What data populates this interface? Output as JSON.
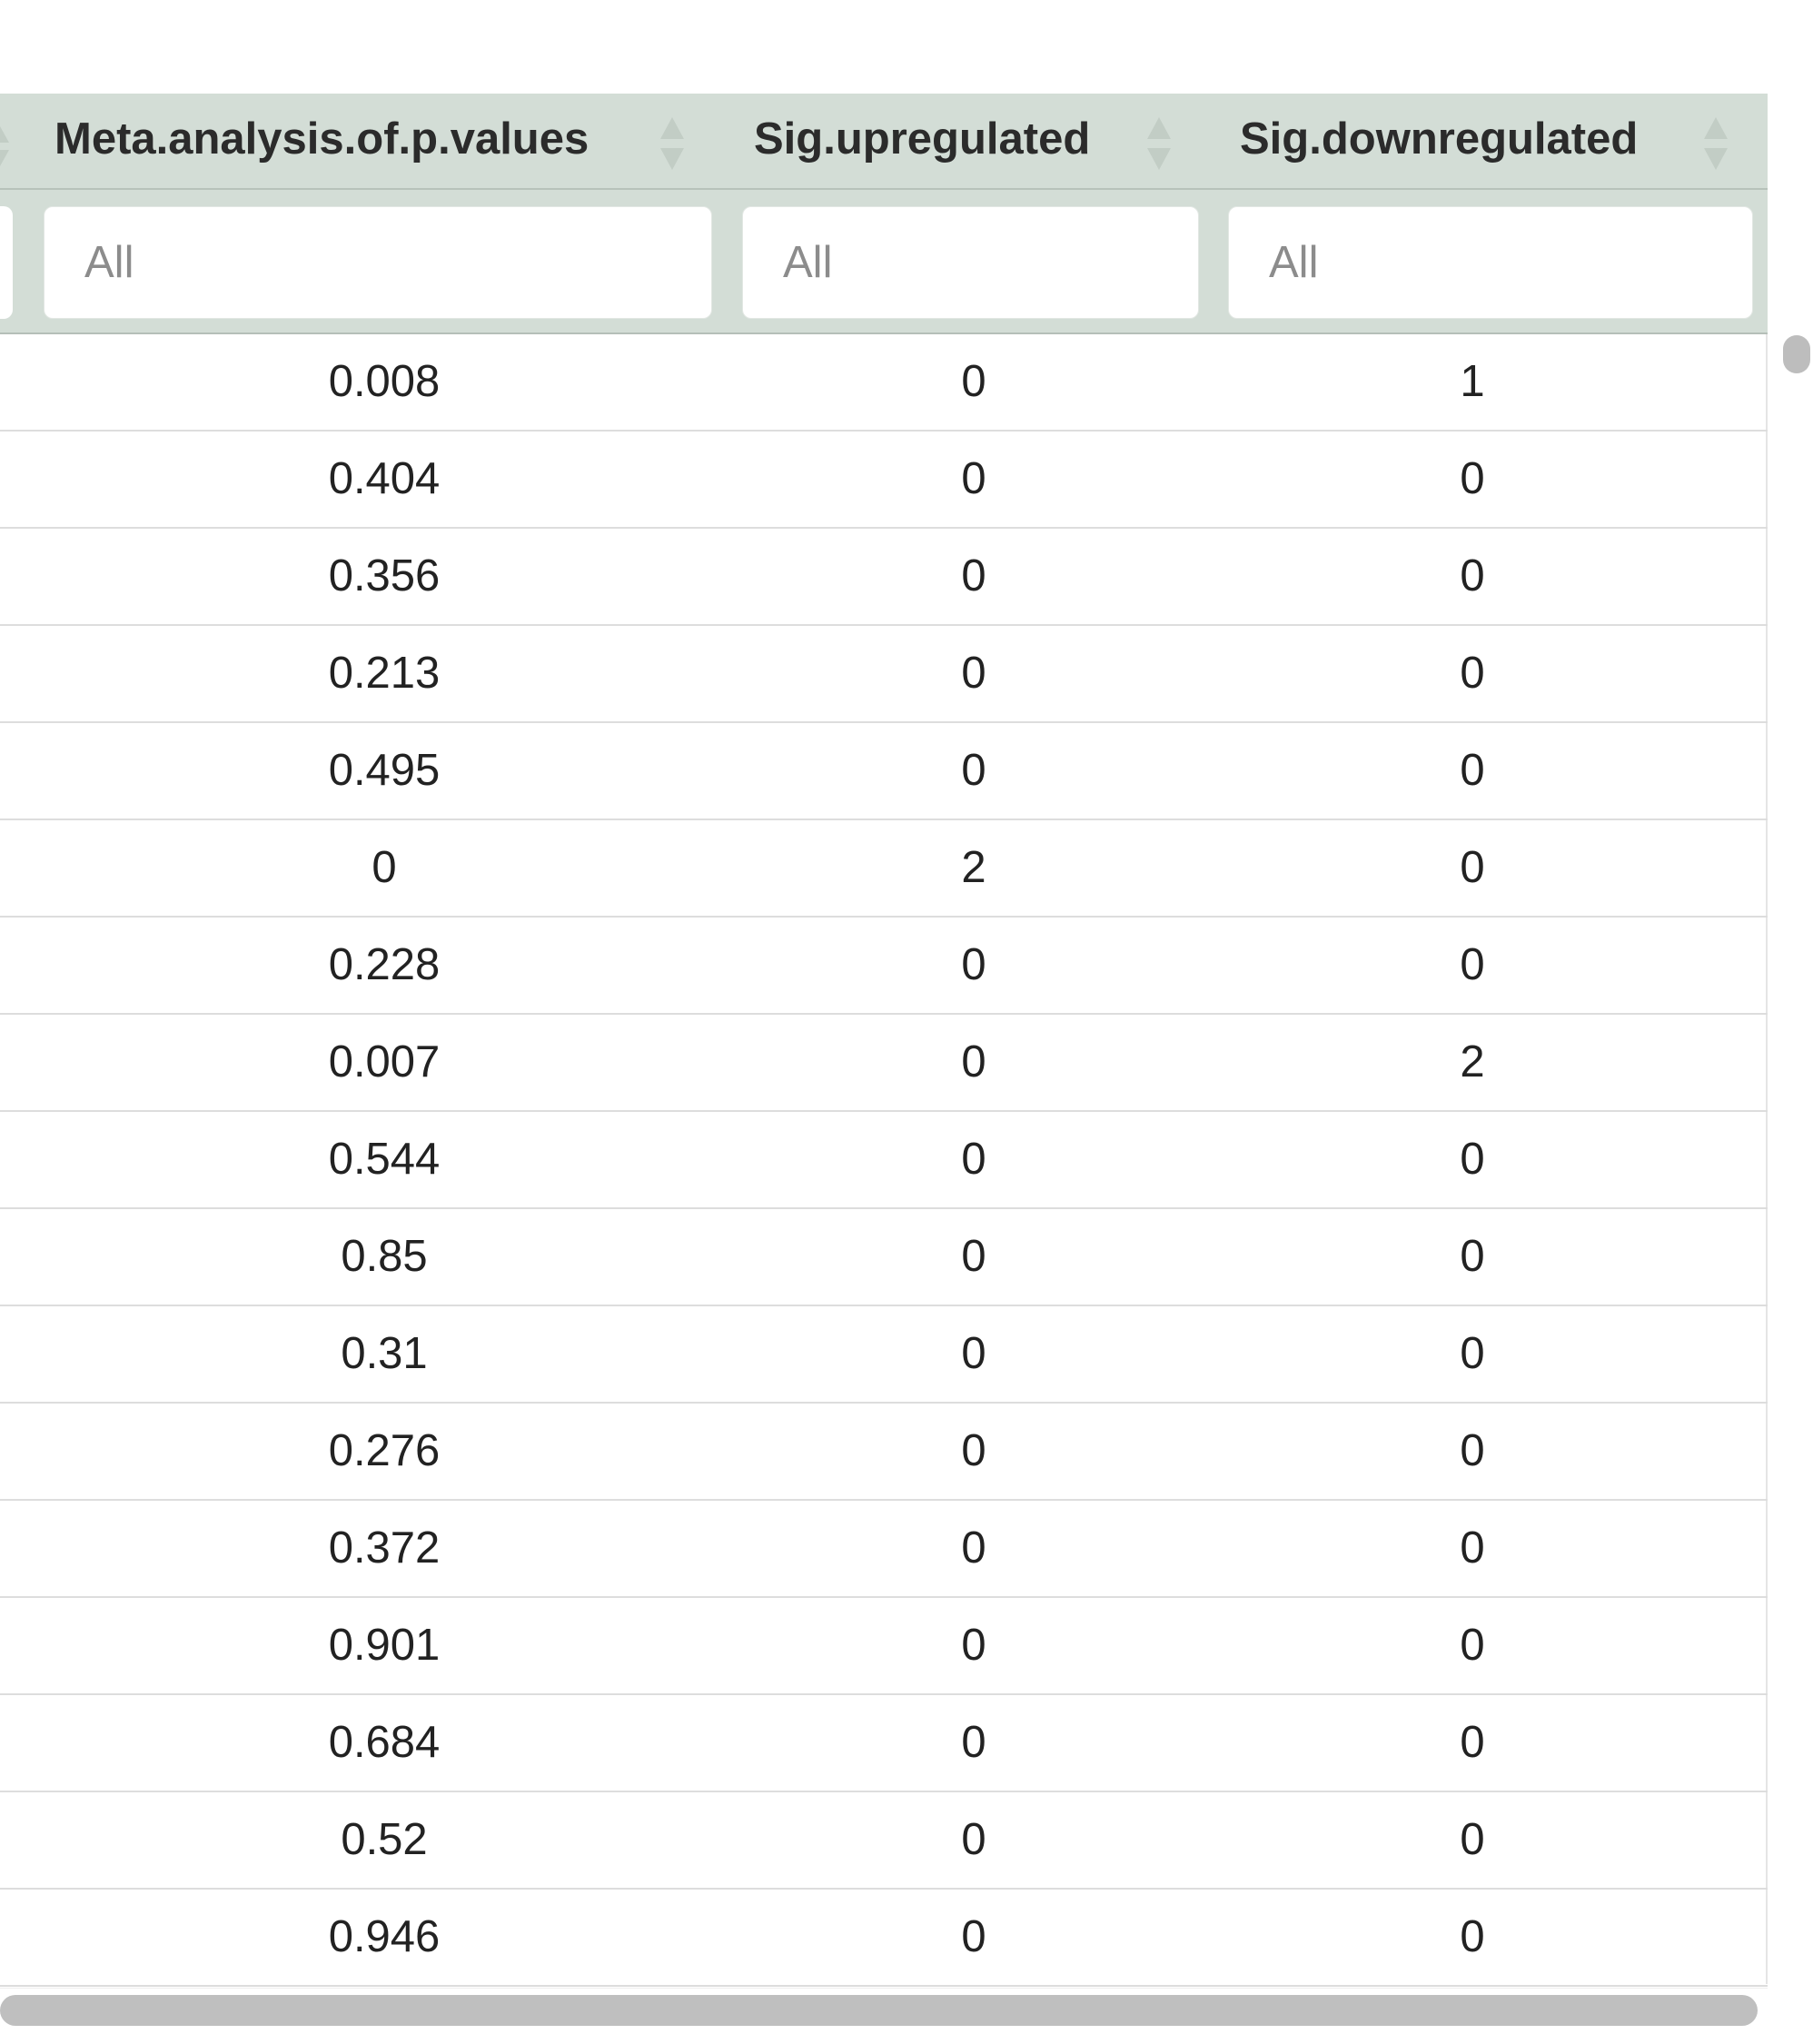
{
  "table": {
    "columns": [
      {
        "label": "Meta.analysis.of.p.values",
        "filter_placeholder": "All"
      },
      {
        "label": "Sig.upregulated",
        "filter_placeholder": "All"
      },
      {
        "label": "Sig.downregulated",
        "filter_placeholder": "All"
      }
    ],
    "rows": [
      {
        "meta": "0.008",
        "up": "0",
        "down": "1"
      },
      {
        "meta": "0.404",
        "up": "0",
        "down": "0"
      },
      {
        "meta": "0.356",
        "up": "0",
        "down": "0"
      },
      {
        "meta": "0.213",
        "up": "0",
        "down": "0"
      },
      {
        "meta": "0.495",
        "up": "0",
        "down": "0"
      },
      {
        "meta": "0",
        "up": "2",
        "down": "0"
      },
      {
        "meta": "0.228",
        "up": "0",
        "down": "0"
      },
      {
        "meta": "0.007",
        "up": "0",
        "down": "2"
      },
      {
        "meta": "0.544",
        "up": "0",
        "down": "0"
      },
      {
        "meta": "0.85",
        "up": "0",
        "down": "0"
      },
      {
        "meta": "0.31",
        "up": "0",
        "down": "0"
      },
      {
        "meta": "0.276",
        "up": "0",
        "down": "0"
      },
      {
        "meta": "0.372",
        "up": "0",
        "down": "0"
      },
      {
        "meta": "0.901",
        "up": "0",
        "down": "0"
      },
      {
        "meta": "0.684",
        "up": "0",
        "down": "0"
      },
      {
        "meta": "0.52",
        "up": "0",
        "down": "0"
      },
      {
        "meta": "0.946",
        "up": "0",
        "down": "0"
      }
    ]
  },
  "icons": {
    "sort": "sort-arrows-icon"
  },
  "colors": {
    "header_bg": "#d3ddd6",
    "sort_icon": "#c2cdc5",
    "row_border": "#dddddd",
    "scrollbar": "#bdbdbd"
  }
}
